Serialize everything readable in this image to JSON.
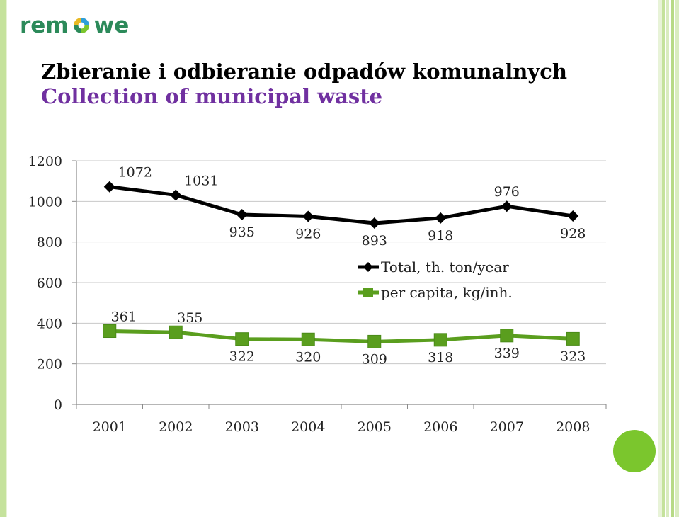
{
  "logo": {
    "left": "rem",
    "right": "we"
  },
  "slide": {
    "title": "Zbieranie i odbieranie odpadów komunalnych",
    "subtitle": "Collection of municipal waste"
  },
  "colors": {
    "total_series": "#000000",
    "per_capita_series": "#5a9e1e",
    "subtitle": "#7030a0",
    "accent_circle": "#7bc62d",
    "logo": "#2c8a5a"
  },
  "chart_data": {
    "type": "line",
    "title": "",
    "xlabel": "",
    "ylabel": "",
    "categories": [
      "2001",
      "2002",
      "2003",
      "2004",
      "2005",
      "2006",
      "2007",
      "2008"
    ],
    "ylim": [
      0,
      1200
    ],
    "yticks": [
      0,
      200,
      400,
      600,
      800,
      1000,
      1200
    ],
    "grid": "horizontal",
    "legend_position": "center-right",
    "series": [
      {
        "name": "Total, th. ton/year",
        "marker": "diamond",
        "color": "#000000",
        "values": [
          1072,
          1031,
          935,
          926,
          893,
          918,
          976,
          928
        ]
      },
      {
        "name": "per capita, kg/inh.",
        "marker": "square",
        "color": "#5a9e1e",
        "values": [
          361,
          355,
          322,
          320,
          309,
          318,
          339,
          323
        ]
      }
    ]
  }
}
